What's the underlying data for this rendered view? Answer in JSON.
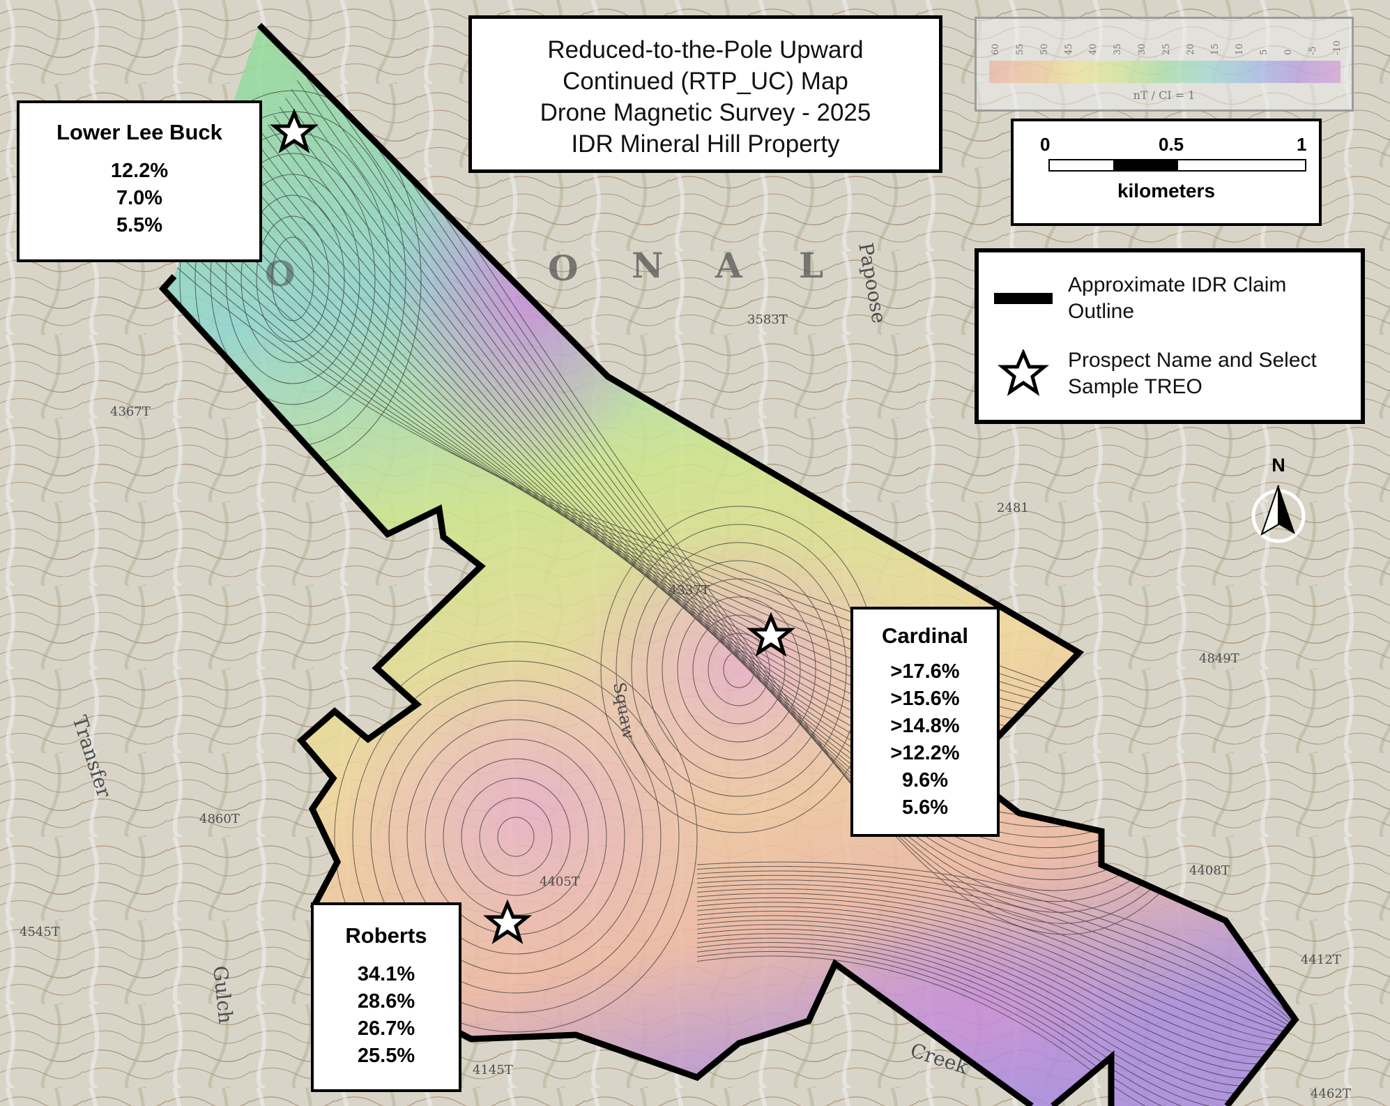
{
  "title": {
    "lines": [
      "Reduced-to-the-Pole Upward",
      "Continued (RTP_UC) Map",
      "Drone Magnetic Survey - 2025",
      "IDR Mineral Hill Property"
    ]
  },
  "colorbar": {
    "ticks": [
      "60",
      "55",
      "50",
      "45",
      "40",
      "35",
      "30",
      "25",
      "20",
      "15",
      "10",
      "5",
      "0",
      "-5",
      "-10"
    ],
    "unit_label": "nT / CI = 1",
    "colors": [
      "#f0a89a",
      "#f3c08c",
      "#f2e48a",
      "#cfe68a",
      "#96dc96",
      "#8fd6d0",
      "#8fb2e6",
      "#a88ae0",
      "#d48ed6"
    ]
  },
  "scale_bar": {
    "labels": [
      "0",
      "0.5",
      "1"
    ],
    "unit": "kilometers"
  },
  "legend": {
    "items": [
      {
        "symbol": "claim-outline",
        "label_lines": [
          "Approximate IDR Claim",
          "Outline"
        ]
      },
      {
        "symbol": "star",
        "label_lines": [
          "Prospect Name and Select",
          "Sample TREO"
        ]
      }
    ]
  },
  "north_arrow": {
    "label": "N"
  },
  "prospects": [
    {
      "name": "Lower Lee Buck",
      "values": [
        "12.2%",
        "7.0%",
        "5.5%"
      ]
    },
    {
      "name": "Cardinal",
      "values": [
        ">17.6%",
        ">15.6%",
        ">14.8%",
        ">12.2%",
        "9.6%",
        "5.6%"
      ]
    },
    {
      "name": "Roberts",
      "values": [
        "34.1%",
        "28.6%",
        "26.7%",
        "25.5%"
      ]
    }
  ],
  "basemap_labels": {
    "words": [
      "O",
      "N",
      "A",
      "L",
      "Papoose",
      "Transfer",
      "Gulch",
      "Squaw",
      "Creek"
    ],
    "elevations": [
      "3583T",
      "4367T",
      "4405T",
      "4860T",
      "4545T",
      "2481",
      "4849T",
      "4408T",
      "4412T",
      "4462T",
      "4145T",
      "4337T"
    ]
  },
  "colors": {
    "claim_outline": "#000000",
    "topo_background": "#d8d5c8",
    "contour_line": "#1a1a1a",
    "magnetic_high": "#f0a89a",
    "magnetic_low": "#d48ed6"
  }
}
